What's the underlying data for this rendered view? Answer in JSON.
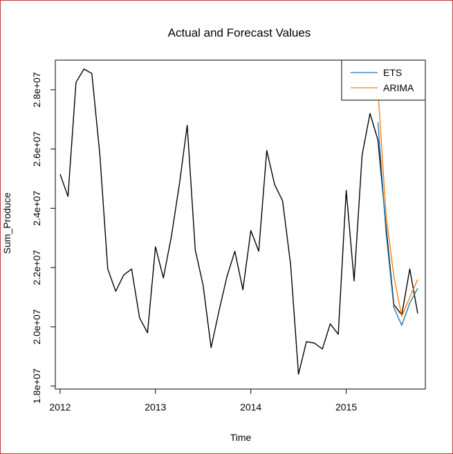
{
  "chart_data": {
    "type": "line",
    "title": "Actual and Forecast Values",
    "xlabel": "Time",
    "ylabel": "Sum_Produce",
    "xlim": [
      2011.95,
      2015.83
    ],
    "ylim": [
      17900000,
      29000000
    ],
    "x_ticks": [
      2012,
      2013,
      2014,
      2015
    ],
    "x_tick_labels": [
      "2012",
      "2013",
      "2014",
      "2015"
    ],
    "y_ticks": [
      18000000,
      20000000,
      22000000,
      24000000,
      26000000,
      28000000
    ],
    "y_tick_labels": [
      "1.8e+07",
      "2.0e+07",
      "2.2e+07",
      "2.4e+07",
      "2.6e+07",
      "2.8e+07"
    ],
    "legend_position": "top-right",
    "series": [
      {
        "key": "actual",
        "color": "#000000",
        "x": [
          2012.0,
          2012.083,
          2012.167,
          2012.25,
          2012.333,
          2012.417,
          2012.5,
          2012.583,
          2012.667,
          2012.75,
          2012.833,
          2012.917,
          2013.0,
          2013.083,
          2013.167,
          2013.25,
          2013.333,
          2013.417,
          2013.5,
          2013.583,
          2013.667,
          2013.75,
          2013.833,
          2013.917,
          2014.0,
          2014.083,
          2014.167,
          2014.25,
          2014.333,
          2014.417,
          2014.5,
          2014.583,
          2014.667,
          2014.75,
          2014.833,
          2014.917,
          2015.0,
          2015.083,
          2015.167,
          2015.25,
          2015.333,
          2015.417,
          2015.5,
          2015.583,
          2015.667,
          2015.75
        ],
        "values": [
          25150000,
          24400000,
          28250000,
          28700000,
          28550000,
          25800000,
          21950000,
          21200000,
          21750000,
          21950000,
          20300000,
          19800000,
          22700000,
          21650000,
          23050000,
          24800000,
          26800000,
          22600000,
          21400000,
          19300000,
          20550000,
          21700000,
          22550000,
          21250000,
          23250000,
          22550000,
          25950000,
          24800000,
          24250000,
          22100000,
          18400000,
          19500000,
          19450000,
          19250000,
          20100000,
          19750000,
          24600000,
          21550000,
          25800000,
          27200000,
          26300000,
          23400000,
          20750000,
          20400000,
          21950000,
          20450000
        ]
      },
      {
        "name": "ETS",
        "color": "#1f77b4",
        "x": [
          2015.333,
          2015.417,
          2015.5,
          2015.583,
          2015.667,
          2015.75
        ],
        "values": [
          26900000,
          23200000,
          20650000,
          20050000,
          20800000,
          21300000
        ]
      },
      {
        "name": "ARIMA",
        "color": "#ff7f0e",
        "x": [
          2015.333,
          2015.417,
          2015.5,
          2015.583,
          2015.667,
          2015.75
        ],
        "values": [
          28000000,
          23800000,
          21700000,
          20350000,
          21000000,
          21600000
        ]
      }
    ]
  }
}
